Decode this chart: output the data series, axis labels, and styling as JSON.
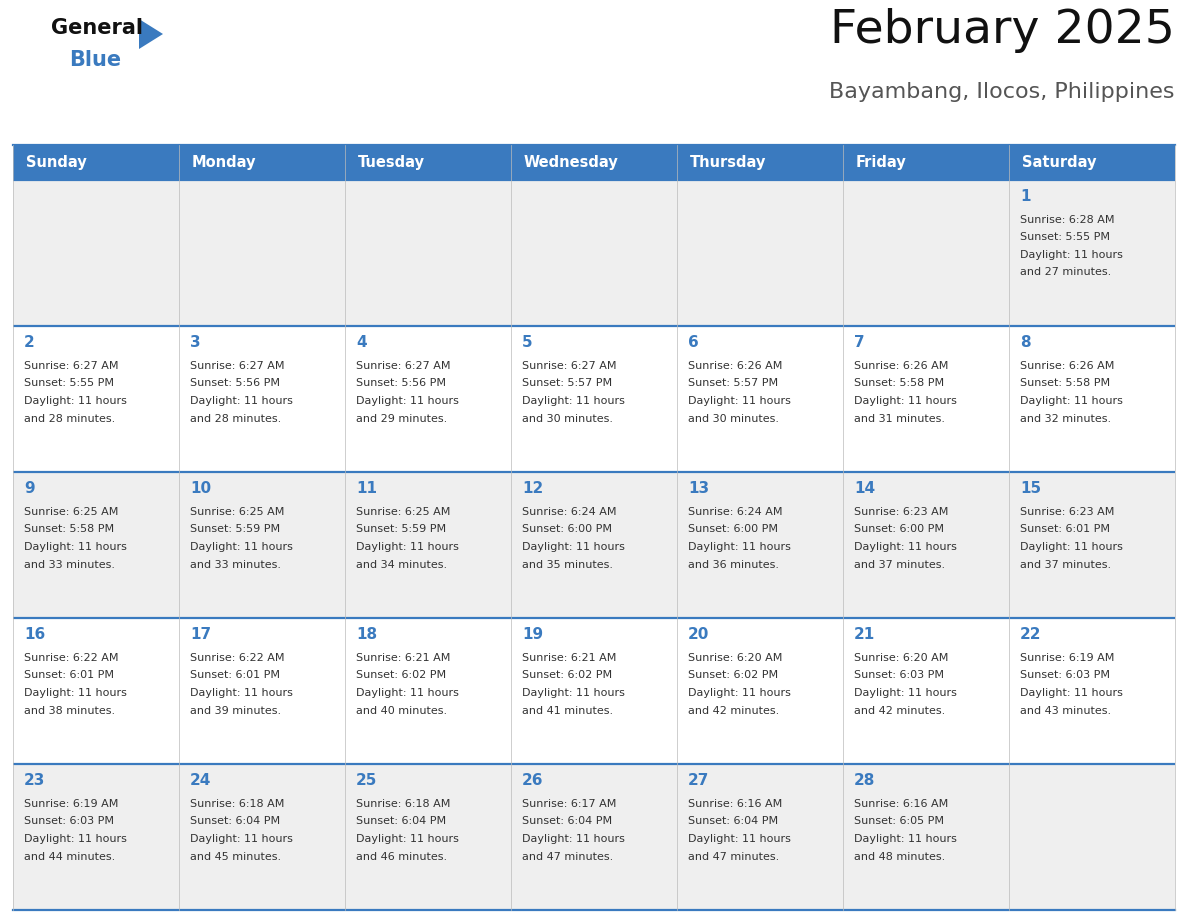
{
  "title": "February 2025",
  "subtitle": "Bayambang, Ilocos, Philippines",
  "header_bg_color": "#3a7abf",
  "header_text_color": "#ffffff",
  "days_of_week": [
    "Sunday",
    "Monday",
    "Tuesday",
    "Wednesday",
    "Thursday",
    "Friday",
    "Saturday"
  ],
  "row_bg_colors": [
    "#efefef",
    "#ffffff"
  ],
  "week_separator_color": "#3a7abf",
  "day_number_color": "#3a7abf",
  "info_text_color": "#333333",
  "calendar_data": [
    [
      {
        "day": null,
        "sunrise": null,
        "sunset": null,
        "daylight": null
      },
      {
        "day": null,
        "sunrise": null,
        "sunset": null,
        "daylight": null
      },
      {
        "day": null,
        "sunrise": null,
        "sunset": null,
        "daylight": null
      },
      {
        "day": null,
        "sunrise": null,
        "sunset": null,
        "daylight": null
      },
      {
        "day": null,
        "sunrise": null,
        "sunset": null,
        "daylight": null
      },
      {
        "day": null,
        "sunrise": null,
        "sunset": null,
        "daylight": null
      },
      {
        "day": 1,
        "sunrise": "6:28 AM",
        "sunset": "5:55 PM",
        "daylight_h": "11 hours",
        "daylight_m": "27 minutes"
      }
    ],
    [
      {
        "day": 2,
        "sunrise": "6:27 AM",
        "sunset": "5:55 PM",
        "daylight_h": "11 hours",
        "daylight_m": "28 minutes"
      },
      {
        "day": 3,
        "sunrise": "6:27 AM",
        "sunset": "5:56 PM",
        "daylight_h": "11 hours",
        "daylight_m": "28 minutes"
      },
      {
        "day": 4,
        "sunrise": "6:27 AM",
        "sunset": "5:56 PM",
        "daylight_h": "11 hours",
        "daylight_m": "29 minutes"
      },
      {
        "day": 5,
        "sunrise": "6:27 AM",
        "sunset": "5:57 PM",
        "daylight_h": "11 hours",
        "daylight_m": "30 minutes"
      },
      {
        "day": 6,
        "sunrise": "6:26 AM",
        "sunset": "5:57 PM",
        "daylight_h": "11 hours",
        "daylight_m": "30 minutes"
      },
      {
        "day": 7,
        "sunrise": "6:26 AM",
        "sunset": "5:58 PM",
        "daylight_h": "11 hours",
        "daylight_m": "31 minutes"
      },
      {
        "day": 8,
        "sunrise": "6:26 AM",
        "sunset": "5:58 PM",
        "daylight_h": "11 hours",
        "daylight_m": "32 minutes"
      }
    ],
    [
      {
        "day": 9,
        "sunrise": "6:25 AM",
        "sunset": "5:58 PM",
        "daylight_h": "11 hours",
        "daylight_m": "33 minutes"
      },
      {
        "day": 10,
        "sunrise": "6:25 AM",
        "sunset": "5:59 PM",
        "daylight_h": "11 hours",
        "daylight_m": "33 minutes"
      },
      {
        "day": 11,
        "sunrise": "6:25 AM",
        "sunset": "5:59 PM",
        "daylight_h": "11 hours",
        "daylight_m": "34 minutes"
      },
      {
        "day": 12,
        "sunrise": "6:24 AM",
        "sunset": "6:00 PM",
        "daylight_h": "11 hours",
        "daylight_m": "35 minutes"
      },
      {
        "day": 13,
        "sunrise": "6:24 AM",
        "sunset": "6:00 PM",
        "daylight_h": "11 hours",
        "daylight_m": "36 minutes"
      },
      {
        "day": 14,
        "sunrise": "6:23 AM",
        "sunset": "6:00 PM",
        "daylight_h": "11 hours",
        "daylight_m": "37 minutes"
      },
      {
        "day": 15,
        "sunrise": "6:23 AM",
        "sunset": "6:01 PM",
        "daylight_h": "11 hours",
        "daylight_m": "37 minutes"
      }
    ],
    [
      {
        "day": 16,
        "sunrise": "6:22 AM",
        "sunset": "6:01 PM",
        "daylight_h": "11 hours",
        "daylight_m": "38 minutes"
      },
      {
        "day": 17,
        "sunrise": "6:22 AM",
        "sunset": "6:01 PM",
        "daylight_h": "11 hours",
        "daylight_m": "39 minutes"
      },
      {
        "day": 18,
        "sunrise": "6:21 AM",
        "sunset": "6:02 PM",
        "daylight_h": "11 hours",
        "daylight_m": "40 minutes"
      },
      {
        "day": 19,
        "sunrise": "6:21 AM",
        "sunset": "6:02 PM",
        "daylight_h": "11 hours",
        "daylight_m": "41 minutes"
      },
      {
        "day": 20,
        "sunrise": "6:20 AM",
        "sunset": "6:02 PM",
        "daylight_h": "11 hours",
        "daylight_m": "42 minutes"
      },
      {
        "day": 21,
        "sunrise": "6:20 AM",
        "sunset": "6:03 PM",
        "daylight_h": "11 hours",
        "daylight_m": "42 minutes"
      },
      {
        "day": 22,
        "sunrise": "6:19 AM",
        "sunset": "6:03 PM",
        "daylight_h": "11 hours",
        "daylight_m": "43 minutes"
      }
    ],
    [
      {
        "day": 23,
        "sunrise": "6:19 AM",
        "sunset": "6:03 PM",
        "daylight_h": "11 hours",
        "daylight_m": "44 minutes"
      },
      {
        "day": 24,
        "sunrise": "6:18 AM",
        "sunset": "6:04 PM",
        "daylight_h": "11 hours",
        "daylight_m": "45 minutes"
      },
      {
        "day": 25,
        "sunrise": "6:18 AM",
        "sunset": "6:04 PM",
        "daylight_h": "11 hours",
        "daylight_m": "46 minutes"
      },
      {
        "day": 26,
        "sunrise": "6:17 AM",
        "sunset": "6:04 PM",
        "daylight_h": "11 hours",
        "daylight_m": "47 minutes"
      },
      {
        "day": 27,
        "sunrise": "6:16 AM",
        "sunset": "6:04 PM",
        "daylight_h": "11 hours",
        "daylight_m": "47 minutes"
      },
      {
        "day": 28,
        "sunrise": "6:16 AM",
        "sunset": "6:05 PM",
        "daylight_h": "11 hours",
        "daylight_m": "48 minutes"
      },
      {
        "day": null,
        "sunrise": null,
        "sunset": null,
        "daylight_h": null,
        "daylight_m": null
      }
    ]
  ]
}
